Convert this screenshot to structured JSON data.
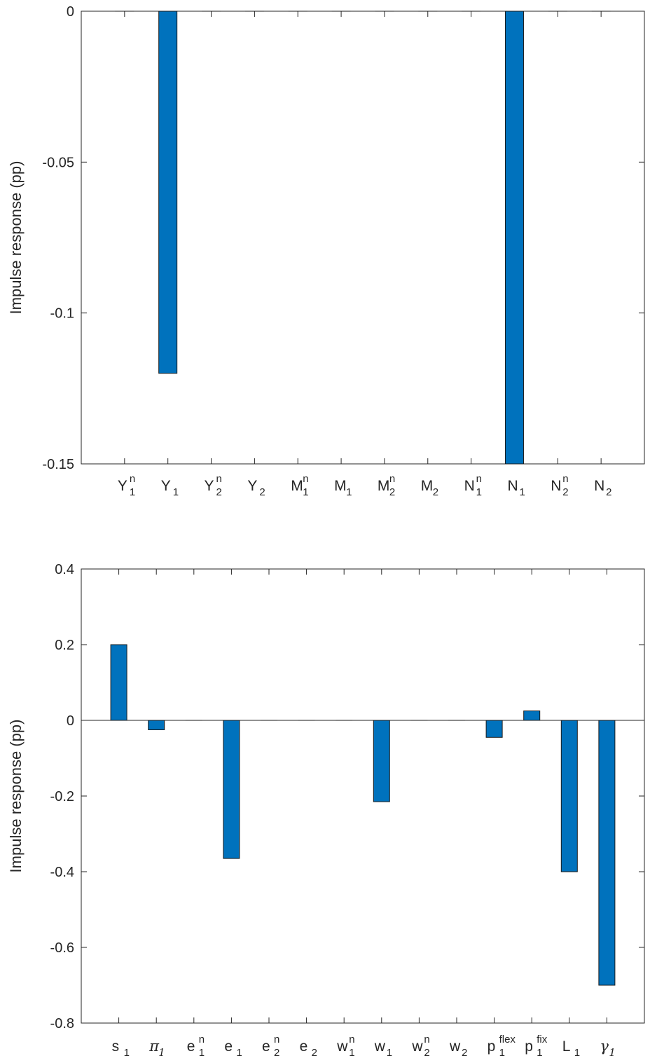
{
  "chart_data": [
    {
      "type": "bar",
      "ylabel": "Impulse response (pp)",
      "ylim": [
        -0.15,
        0
      ],
      "yticks": [
        0,
        -0.05,
        -0.1,
        -0.15
      ],
      "ytick_labels": [
        "0",
        "-0.05",
        "-0.1",
        "-0.15"
      ],
      "categories": [
        {
          "base": "Y",
          "sub": "1",
          "sup": "n"
        },
        {
          "base": "Y",
          "sub": "1",
          "sup": ""
        },
        {
          "base": "Y",
          "sub": "2",
          "sup": "n"
        },
        {
          "base": "Y",
          "sub": "2",
          "sup": ""
        },
        {
          "base": "M",
          "sub": "1",
          "sup": "n"
        },
        {
          "base": "M",
          "sub": "1",
          "sup": ""
        },
        {
          "base": "M",
          "sub": "2",
          "sup": "n"
        },
        {
          "base": "M",
          "sub": "2",
          "sup": ""
        },
        {
          "base": "N",
          "sub": "1",
          "sup": "n"
        },
        {
          "base": "N",
          "sub": "1",
          "sup": ""
        },
        {
          "base": "N",
          "sub": "2",
          "sup": "n"
        },
        {
          "base": "N",
          "sub": "2",
          "sup": ""
        }
      ],
      "values": [
        0,
        -0.12,
        0,
        0,
        0,
        0,
        0,
        0,
        0,
        -0.15,
        0,
        0
      ],
      "bar_color": "#0072BD",
      "grid": false
    },
    {
      "type": "bar",
      "ylabel": "Impulse response (pp)",
      "ylim": [
        -0.8,
        0.4
      ],
      "yticks": [
        0.4,
        0.2,
        0,
        -0.2,
        -0.4,
        -0.6,
        -0.8
      ],
      "ytick_labels": [
        "0.4",
        "0.2",
        "0",
        "-0.2",
        "-0.4",
        "-0.6",
        "-0.8"
      ],
      "categories": [
        {
          "base": "s",
          "sub": "1",
          "sup": ""
        },
        {
          "base": "π",
          "sub": "1",
          "sup": "",
          "greek": true
        },
        {
          "base": "e",
          "sub": "1",
          "sup": "n"
        },
        {
          "base": "e",
          "sub": "1",
          "sup": ""
        },
        {
          "base": "e",
          "sub": "2",
          "sup": "n"
        },
        {
          "base": "e",
          "sub": "2",
          "sup": ""
        },
        {
          "base": "w",
          "sub": "1",
          "sup": "n"
        },
        {
          "base": "w",
          "sub": "1",
          "sup": ""
        },
        {
          "base": "w",
          "sub": "2",
          "sup": "n"
        },
        {
          "base": "w",
          "sub": "2",
          "sup": ""
        },
        {
          "base": "p",
          "sub": "1",
          "sup": "flex"
        },
        {
          "base": "p",
          "sub": "1",
          "sup": "fix"
        },
        {
          "base": "L",
          "sub": "1",
          "sup": ""
        },
        {
          "base": "γ",
          "sub": "1",
          "sup": "",
          "greek": true
        }
      ],
      "values": [
        0.2,
        -0.025,
        0,
        -0.365,
        0,
        0,
        0,
        -0.215,
        0,
        0,
        -0.045,
        0.025,
        -0.4,
        -0.7
      ],
      "bar_color": "#0072BD",
      "grid": false
    }
  ]
}
